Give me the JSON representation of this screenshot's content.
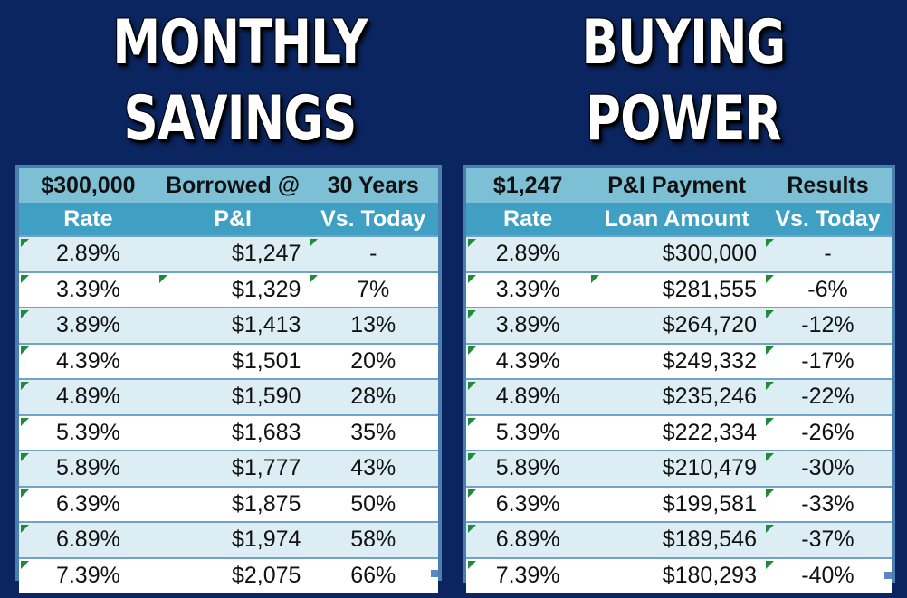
{
  "left": {
    "title_line1": "MONTHLY",
    "title_line2": "SAVINGS",
    "header": {
      "amount": "$300,000",
      "label": "Borrowed @",
      "term": "30 Years"
    },
    "columns": [
      "Rate",
      "P&I",
      "Vs. Today"
    ],
    "rows": [
      {
        "rate": "2.89%",
        "value": "$1,247",
        "vs": "-"
      },
      {
        "rate": "3.39%",
        "value": "$1,329",
        "vs": "7%"
      },
      {
        "rate": "3.89%",
        "value": "$1,413",
        "vs": "13%"
      },
      {
        "rate": "4.39%",
        "value": "$1,501",
        "vs": "20%"
      },
      {
        "rate": "4.89%",
        "value": "$1,590",
        "vs": "28%"
      },
      {
        "rate": "5.39%",
        "value": "$1,683",
        "vs": "35%"
      },
      {
        "rate": "5.89%",
        "value": "$1,777",
        "vs": "43%"
      },
      {
        "rate": "6.39%",
        "value": "$1,875",
        "vs": "50%"
      },
      {
        "rate": "6.89%",
        "value": "$1,974",
        "vs": "58%"
      },
      {
        "rate": "7.39%",
        "value": "$2,075",
        "vs": "66%"
      }
    ]
  },
  "right": {
    "title_line1": "BUYING",
    "title_line2": "POWER",
    "header": {
      "amount": "$1,247",
      "label": "P&I Payment",
      "term": "Results"
    },
    "columns": [
      "Rate",
      "Loan Amount",
      "Vs. Today"
    ],
    "rows": [
      {
        "rate": "2.89%",
        "value": "$300,000",
        "vs": "-"
      },
      {
        "rate": "3.39%",
        "value": "$281,555",
        "vs": "-6%"
      },
      {
        "rate": "3.89%",
        "value": "$264,720",
        "vs": "-12%"
      },
      {
        "rate": "4.39%",
        "value": "$249,332",
        "vs": "-17%"
      },
      {
        "rate": "4.89%",
        "value": "$235,246",
        "vs": "-22%"
      },
      {
        "rate": "5.39%",
        "value": "$222,334",
        "vs": "-26%"
      },
      {
        "rate": "5.89%",
        "value": "$210,479",
        "vs": "-30%"
      },
      {
        "rate": "6.39%",
        "value": "$199,581",
        "vs": "-33%"
      },
      {
        "rate": "6.89%",
        "value": "$189,546",
        "vs": "-37%"
      },
      {
        "rate": "7.39%",
        "value": "$180,293",
        "vs": "-40%"
      }
    ]
  },
  "colors": {
    "background": "#0b2560",
    "header_light": "#7dc0d6",
    "header_dark": "#3fa0c4",
    "row_alt": "#dcedf3",
    "indicator": "#1e8a3a"
  }
}
